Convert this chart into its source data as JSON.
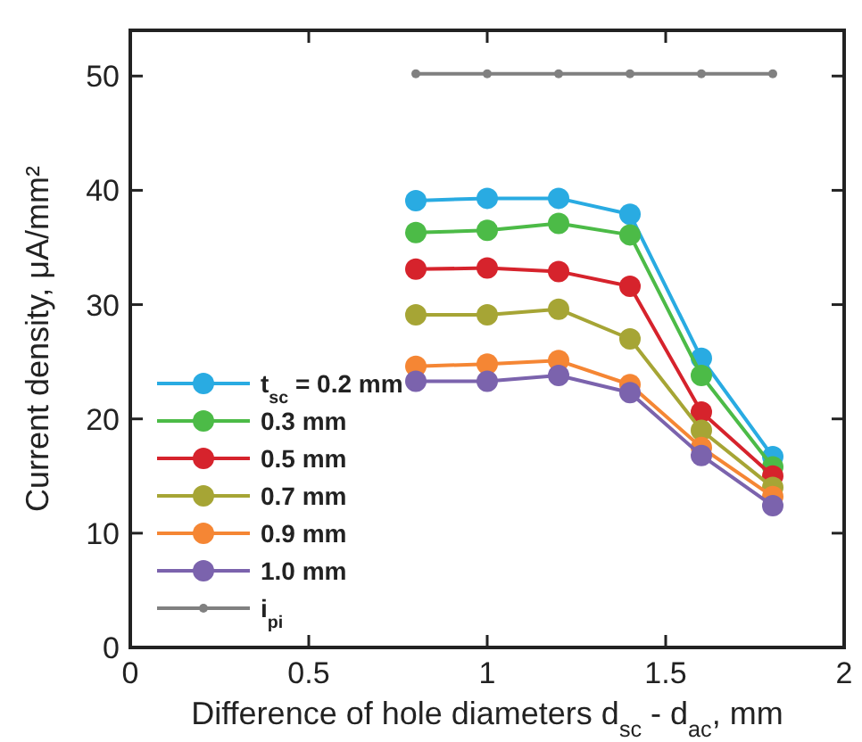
{
  "chart_data": {
    "type": "line",
    "xlabel": "Difference of hole diameters d$_{sc}$ - d$_{ac}$, mm",
    "ylabel": "Current density, μA/mm²",
    "x": [
      0.8,
      1.0,
      1.2,
      1.4,
      1.6,
      1.8
    ],
    "series": [
      {
        "name": "t$_{sc}$ = 0.2 mm",
        "color": "#29abe2",
        "values": [
          39.1,
          39.3,
          39.3,
          37.9,
          25.3,
          16.7
        ]
      },
      {
        "name": "0.3 mm",
        "color": "#4cbb47",
        "values": [
          36.3,
          36.5,
          37.1,
          36.1,
          23.8,
          15.8
        ]
      },
      {
        "name": "0.5 mm",
        "color": "#d6232c",
        "values": [
          33.1,
          33.2,
          32.9,
          31.6,
          20.6,
          15.0
        ]
      },
      {
        "name": "0.7 mm",
        "color": "#a6a535",
        "values": [
          29.1,
          29.1,
          29.6,
          27.0,
          19.0,
          14.0
        ]
      },
      {
        "name": "0.9 mm",
        "color": "#f58634",
        "values": [
          24.6,
          24.8,
          25.1,
          23.0,
          17.5,
          13.2
        ]
      },
      {
        "name": "1.0 mm",
        "color": "#7b63ad",
        "values": [
          23.3,
          23.3,
          23.8,
          22.3,
          16.8,
          12.4
        ]
      },
      {
        "name": "i$_{pi}$",
        "color": "#808080",
        "values": [
          50.2,
          50.2,
          50.2,
          50.2,
          50.2,
          50.2
        ]
      }
    ],
    "xlim": [
      0,
      2
    ],
    "xticks": [
      0,
      0.5,
      1,
      1.5,
      2
    ],
    "ylim": [
      0,
      54
    ],
    "yticks": [
      0,
      10,
      20,
      30,
      40,
      50
    ],
    "marker": "circle",
    "legend": "bottom left",
    "grid": false
  }
}
